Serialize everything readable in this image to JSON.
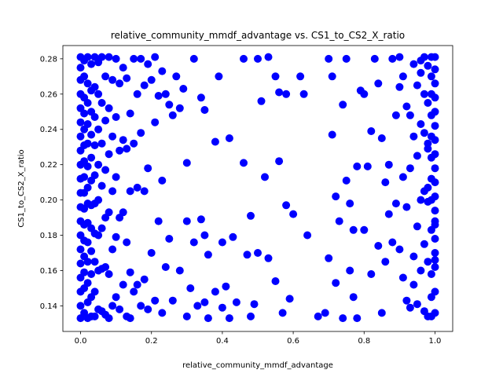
{
  "chart_data": {
    "type": "scatter",
    "title": "relative_community_mmdf_advantage vs. CS1_to_CS2_X_ratio",
    "xlabel": "relative_community_mmdf_advantage",
    "ylabel": "CS1_to_CS2_X_ratio",
    "xlim": [
      -0.05,
      1.05
    ],
    "ylim": [
      0.1255,
      0.2875
    ],
    "x_ticks": [
      0.0,
      0.2,
      0.4,
      0.6,
      0.8,
      1.0
    ],
    "x_tick_labels": [
      "0.0",
      "0.2",
      "0.4",
      "0.6",
      "0.8",
      "1.0"
    ],
    "y_ticks": [
      0.14,
      0.16,
      0.18,
      0.2,
      0.22,
      0.24,
      0.26,
      0.28
    ],
    "y_tick_labels": [
      "0.14",
      "0.16",
      "0.18",
      "0.20",
      "0.22",
      "0.24",
      "0.26",
      "0.28"
    ],
    "grid": false,
    "marker_color": "#0000ff",
    "points_x": [
      0.0,
      0.0,
      0.0,
      0.0,
      0.0,
      0.0,
      0.0,
      0.0,
      0.0,
      0.0,
      0.0,
      0.0,
      0.0,
      0.0,
      0.0,
      0.0,
      0.0,
      0.0,
      0.0,
      0.0,
      0.01,
      0.01,
      0.01,
      0.01,
      0.01,
      0.01,
      0.01,
      0.01,
      0.01,
      0.01,
      0.01,
      0.01,
      0.01,
      0.01,
      0.01,
      0.01,
      0.02,
      0.02,
      0.02,
      0.02,
      0.02,
      0.02,
      0.02,
      0.02,
      0.02,
      0.02,
      0.02,
      0.02,
      0.02,
      0.02,
      0.03,
      0.03,
      0.03,
      0.03,
      0.03,
      0.03,
      0.03,
      0.03,
      0.03,
      0.03,
      0.03,
      0.03,
      0.04,
      0.04,
      0.04,
      0.04,
      0.04,
      0.04,
      0.04,
      0.04,
      0.04,
      0.04,
      0.05,
      0.05,
      0.05,
      0.05,
      0.05,
      0.05,
      0.05,
      0.05,
      0.06,
      0.06,
      0.06,
      0.06,
      0.06,
      0.06,
      0.06,
      0.07,
      0.07,
      0.07,
      0.07,
      0.07,
      0.07,
      0.08,
      0.08,
      0.08,
      0.08,
      0.08,
      0.08,
      0.09,
      0.09,
      0.09,
      0.09,
      0.09,
      0.1,
      0.1,
      0.1,
      0.1,
      0.1,
      0.11,
      0.11,
      0.11,
      0.11,
      0.12,
      0.12,
      0.12,
      0.12,
      0.13,
      0.13,
      0.13,
      0.13,
      0.14,
      0.14,
      0.14,
      0.14,
      0.15,
      0.15,
      0.15,
      0.16,
      0.16,
      0.16,
      0.17,
      0.17,
      0.17,
      0.18,
      0.18,
      0.18,
      0.19,
      0.19,
      0.19,
      0.2,
      0.2,
      0.21,
      0.21,
      0.21,
      0.22,
      0.22,
      0.23,
      0.23,
      0.23,
      0.24,
      0.24,
      0.25,
      0.25,
      0.26,
      0.26,
      0.27,
      0.28,
      0.28,
      0.29,
      0.3,
      0.3,
      0.3,
      0.31,
      0.32,
      0.32,
      0.33,
      0.34,
      0.34,
      0.35,
      0.35,
      0.35,
      0.36,
      0.36,
      0.38,
      0.38,
      0.39,
      0.4,
      0.4,
      0.41,
      0.42,
      0.42,
      0.43,
      0.44,
      0.46,
      0.46,
      0.47,
      0.48,
      0.48,
      0.49,
      0.5,
      0.5,
      0.51,
      0.52,
      0.53,
      0.53,
      0.55,
      0.55,
      0.56,
      0.56,
      0.57,
      0.58,
      0.58,
      0.59,
      0.6,
      0.62,
      0.63,
      0.64,
      0.67,
      0.69,
      0.7,
      0.7,
      0.71,
      0.71,
      0.72,
      0.72,
      0.73,
      0.74,
      0.74,
      0.75,
      0.75,
      0.76,
      0.76,
      0.77,
      0.77,
      0.78,
      0.78,
      0.79,
      0.8,
      0.8,
      0.81,
      0.82,
      0.82,
      0.83,
      0.84,
      0.84,
      0.85,
      0.85,
      0.86,
      0.86,
      0.87,
      0.87,
      0.88,
      0.88,
      0.89,
      0.89,
      0.9,
      0.9,
      0.9,
      0.91,
      0.91,
      0.91,
      0.92,
      0.92,
      0.92,
      0.93,
      0.93,
      0.93,
      0.94,
      0.94,
      0.94,
      0.94,
      0.95,
      0.95,
      0.95,
      0.95,
      0.96,
      0.96,
      0.96,
      0.96,
      0.96,
      0.97,
      0.97,
      0.97,
      0.97,
      0.97,
      0.97,
      0.98,
      0.98,
      0.98,
      0.98,
      0.98,
      0.98,
      0.98,
      0.98,
      0.99,
      0.99,
      0.99,
      0.99,
      0.99,
      0.99,
      0.99,
      0.99,
      0.99,
      0.99,
      0.99,
      0.99,
      1.0,
      1.0,
      1.0,
      1.0,
      1.0,
      1.0,
      1.0,
      1.0,
      1.0,
      1.0,
      1.0,
      1.0,
      1.0,
      1.0,
      1.0,
      1.0,
      1.0,
      1.0,
      1.0,
      1.0
    ],
    "points_y": [
      0.281,
      0.275,
      0.268,
      0.26,
      0.252,
      0.244,
      0.236,
      0.228,
      0.22,
      0.212,
      0.204,
      0.196,
      0.188,
      0.18,
      0.172,
      0.164,
      0.156,
      0.148,
      0.14,
      0.133,
      0.279,
      0.27,
      0.258,
      0.249,
      0.24,
      0.231,
      0.222,
      0.213,
      0.204,
      0.195,
      0.186,
      0.177,
      0.168,
      0.159,
      0.15,
      0.136,
      0.281,
      0.266,
      0.255,
      0.243,
      0.232,
      0.219,
      0.207,
      0.198,
      0.187,
      0.176,
      0.165,
      0.153,
      0.142,
      0.133,
      0.277,
      0.262,
      0.25,
      0.237,
      0.224,
      0.211,
      0.197,
      0.184,
      0.171,
      0.158,
      0.145,
      0.134,
      0.281,
      0.264,
      0.247,
      0.231,
      0.214,
      0.198,
      0.181,
      0.165,
      0.148,
      0.134,
      0.278,
      0.26,
      0.24,
      0.22,
      0.2,
      0.18,
      0.16,
      0.138,
      0.281,
      0.255,
      0.232,
      0.208,
      0.184,
      0.161,
      0.137,
      0.27,
      0.245,
      0.217,
      0.19,
      0.162,
      0.135,
      0.281,
      0.252,
      0.226,
      0.193,
      0.158,
      0.133,
      0.268,
      0.236,
      0.205,
      0.172,
      0.14,
      0.28,
      0.247,
      0.213,
      0.179,
      0.145,
      0.266,
      0.228,
      0.19,
      0.138,
      0.275,
      0.234,
      0.193,
      0.152,
      0.269,
      0.229,
      0.176,
      0.134,
      0.249,
      0.205,
      0.159,
      0.133,
      0.28,
      0.232,
      0.148,
      0.26,
      0.207,
      0.152,
      0.28,
      0.238,
      0.14,
      0.265,
      0.205,
      0.155,
      0.277,
      0.218,
      0.138,
      0.268,
      0.17,
      0.281,
      0.244,
      0.143,
      0.259,
      0.188,
      0.273,
      0.211,
      0.136,
      0.26,
      0.162,
      0.254,
      0.178,
      0.248,
      0.143,
      0.27,
      0.252,
      0.16,
      0.263,
      0.221,
      0.188,
      0.134,
      0.15,
      0.28,
      0.176,
      0.14,
      0.258,
      0.189,
      0.251,
      0.18,
      0.142,
      0.169,
      0.133,
      0.233,
      0.148,
      0.27,
      0.176,
      0.139,
      0.151,
      0.235,
      0.133,
      0.179,
      0.142,
      0.28,
      0.221,
      0.169,
      0.191,
      0.134,
      0.141,
      0.28,
      0.17,
      0.256,
      0.213,
      0.281,
      0.167,
      0.27,
      0.154,
      0.261,
      0.222,
      0.136,
      0.26,
      0.197,
      0.144,
      0.192,
      0.27,
      0.26,
      0.18,
      0.134,
      0.136,
      0.28,
      0.167,
      0.27,
      0.237,
      0.202,
      0.153,
      0.188,
      0.254,
      0.133,
      0.28,
      0.211,
      0.16,
      0.198,
      0.145,
      0.183,
      0.219,
      0.133,
      0.262,
      0.183,
      0.26,
      0.219,
      0.158,
      0.239,
      0.28,
      0.174,
      0.266,
      0.235,
      0.136,
      0.21,
      0.165,
      0.22,
      0.192,
      0.28,
      0.176,
      0.248,
      0.198,
      0.264,
      0.172,
      0.281,
      0.156,
      0.27,
      0.213,
      0.143,
      0.253,
      0.196,
      0.139,
      0.248,
      0.218,
      0.152,
      0.277,
      0.236,
      0.168,
      0.265,
      0.225,
      0.185,
      0.141,
      0.279,
      0.243,
      0.2,
      0.16,
      0.272,
      0.238,
      0.205,
      0.175,
      0.137,
      0.281,
      0.26,
      0.232,
      0.199,
      0.165,
      0.134,
      0.276,
      0.255,
      0.229,
      0.207,
      0.183,
      0.158,
      0.145,
      0.134,
      0.281,
      0.27,
      0.26,
      0.248,
      0.236,
      0.224,
      0.212,
      0.2,
      0.188,
      0.166,
      0.148,
      0.136,
      0.281,
      0.274,
      0.266,
      0.258,
      0.25,
      0.242,
      0.234,
      0.226,
      0.218,
      0.21,
      0.202,
      0.194,
      0.186,
      0.178,
      0.17,
      0.162,
      0.154,
      0.146,
      0.138,
      0.133
    ]
  }
}
